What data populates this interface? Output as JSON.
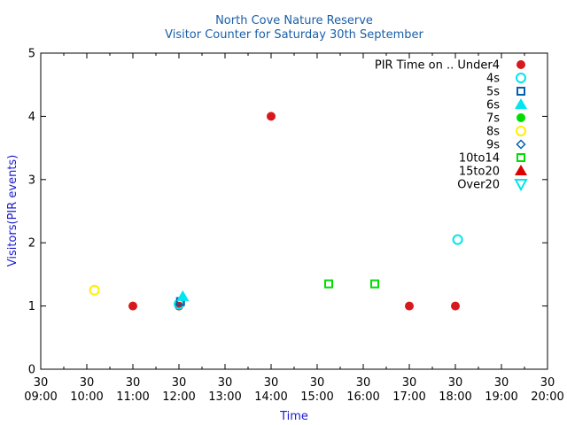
{
  "chart_data": {
    "type": "scatter",
    "title": "North Cove Nature Reserve",
    "subtitle": "Visitor Counter for Saturday 30th September",
    "xlabel": "Time",
    "ylabel": "Visitors(PIR events)",
    "xlim": [
      "09:00",
      "20:00"
    ],
    "ylim": [
      0,
      5
    ],
    "x_ticks": [
      "09:00",
      "10:00",
      "11:00",
      "12:00",
      "13:00",
      "14:00",
      "15:00",
      "16:00",
      "17:00",
      "18:00",
      "19:00",
      "20:00"
    ],
    "x_tick_prefix": "30",
    "y_ticks": [
      0,
      1,
      2,
      3,
      4,
      5
    ],
    "legend_title": "PIR Time on ..",
    "legend_position": "top-right",
    "series": [
      {
        "name": "Under4",
        "marker": "filled-circle",
        "color": "#d7191c",
        "points": [
          {
            "x": "11:00",
            "y": 1
          },
          {
            "x": "12:00",
            "y": 1
          },
          {
            "x": "14:00",
            "y": 4
          },
          {
            "x": "17:00",
            "y": 1
          },
          {
            "x": "18:00",
            "y": 1
          }
        ]
      },
      {
        "name": "4s",
        "marker": "open-circle",
        "color": "#00e5ee",
        "points": [
          {
            "x": "12:00",
            "y": 1.03
          },
          {
            "x": "18:03",
            "y": 2.05
          }
        ]
      },
      {
        "name": "5s",
        "marker": "open-square",
        "color": "#0060ad",
        "points": [
          {
            "x": "12:02",
            "y": 1.07
          }
        ]
      },
      {
        "name": "6s",
        "marker": "filled-triangle",
        "color": "#00e5ee",
        "points": [
          {
            "x": "12:05",
            "y": 1.15
          }
        ]
      },
      {
        "name": "7s",
        "marker": "filled-circle",
        "color": "#00dd00",
        "points": []
      },
      {
        "name": "8s",
        "marker": "open-circle",
        "color": "#ffee00",
        "points": [
          {
            "x": "10:10",
            "y": 1.25
          }
        ]
      },
      {
        "name": "9s",
        "marker": "open-diamond",
        "color": "#0060ad",
        "points": []
      },
      {
        "name": "10to14",
        "marker": "open-square",
        "color": "#00dd00",
        "points": [
          {
            "x": "15:15",
            "y": 1.35
          },
          {
            "x": "16:15",
            "y": 1.35
          }
        ]
      },
      {
        "name": "15to20",
        "marker": "filled-triangle",
        "color": "#dd0000",
        "points": []
      },
      {
        "name": "Over20",
        "marker": "open-triangle-down",
        "color": "#00e5ee",
        "points": []
      }
    ]
  }
}
